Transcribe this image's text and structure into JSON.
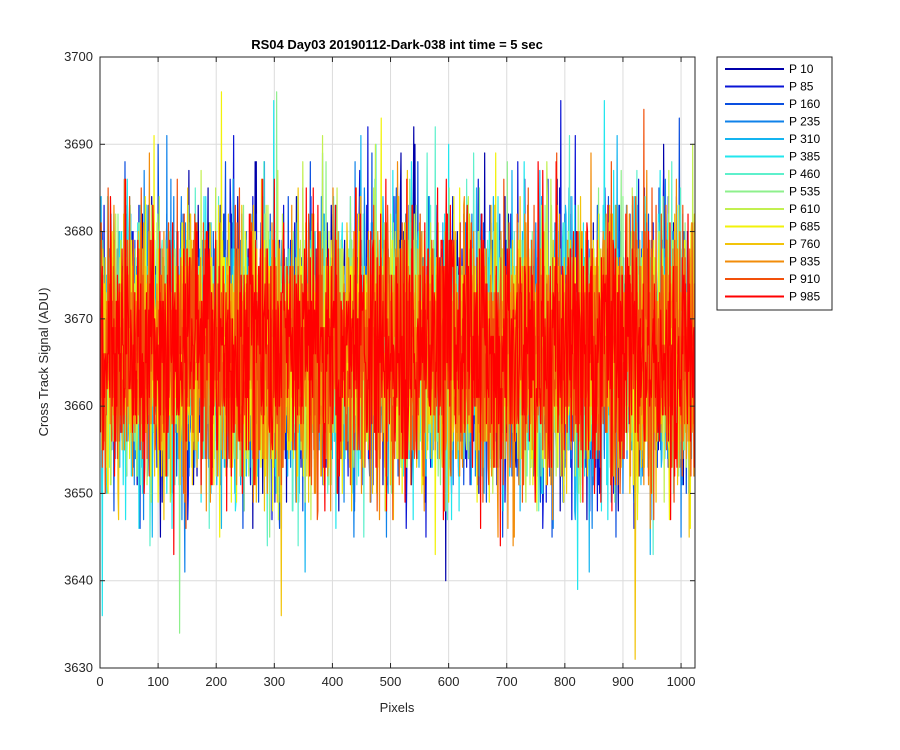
{
  "chart_data": {
    "type": "line",
    "title": "RS04 Day03 20190112-Dark-038 int time = 5 sec",
    "xlabel": "Pixels",
    "ylabel": "Cross Track Signal (ADU)",
    "xlim": [
      0,
      1024
    ],
    "ylim": [
      3630,
      3700
    ],
    "x_ticks": [
      0,
      100,
      200,
      300,
      400,
      500,
      600,
      700,
      800,
      900,
      1000
    ],
    "y_ticks": [
      3630,
      3640,
      3650,
      3660,
      3670,
      3680,
      3690,
      3700
    ],
    "grid": true,
    "legend_position": "outside-right",
    "x_start": 1,
    "x_end": 1024,
    "series": [
      {
        "name": "P 10",
        "color": "#0000aa",
        "mean": 3666.5,
        "noise_sd": 7.5,
        "seed": 11
      },
      {
        "name": "P 85",
        "color": "#0a14d6",
        "mean": 3666.5,
        "noise_sd": 7.5,
        "seed": 23
      },
      {
        "name": "P 160",
        "color": "#0a4fe0",
        "mean": 3666.5,
        "noise_sd": 7.5,
        "seed": 37
      },
      {
        "name": "P 235",
        "color": "#0f82ea",
        "mean": 3666.5,
        "noise_sd": 7.5,
        "seed": 41
      },
      {
        "name": "P 310",
        "color": "#14b4f0",
        "mean": 3666.5,
        "noise_sd": 7.5,
        "seed": 53
      },
      {
        "name": "P 385",
        "color": "#22e6ee",
        "mean": 3666.5,
        "noise_sd": 7.5,
        "seed": 67
      },
      {
        "name": "P 460",
        "color": "#5ef0cc",
        "mean": 3666.5,
        "noise_sd": 7.5,
        "seed": 71
      },
      {
        "name": "P 535",
        "color": "#8ef08c",
        "mean": 3666.5,
        "noise_sd": 7.5,
        "seed": 83
      },
      {
        "name": "P 610",
        "color": "#c2f050",
        "mean": 3666.5,
        "noise_sd": 7.5,
        "seed": 97
      },
      {
        "name": "P 685",
        "color": "#f2f20a",
        "mean": 3666.5,
        "noise_sd": 7.5,
        "seed": 101
      },
      {
        "name": "P 760",
        "color": "#f2c40a",
        "mean": 3666.5,
        "noise_sd": 7.5,
        "seed": 113
      },
      {
        "name": "P 835",
        "color": "#f28c0a",
        "mean": 3666.5,
        "noise_sd": 7.5,
        "seed": 127
      },
      {
        "name": "P 910",
        "color": "#f2500a",
        "mean": 3666.5,
        "noise_sd": 7.5,
        "seed": 131
      },
      {
        "name": "P 985",
        "color": "#ff0000",
        "mean": 3666.5,
        "noise_sd": 7.5,
        "seed": 149
      }
    ],
    "notable_extremes": [
      {
        "series": "P 760",
        "x": 921,
        "y": 3631
      },
      {
        "series": "P 535",
        "x": 137,
        "y": 3634
      },
      {
        "series": "P 385",
        "x": 4,
        "y": 3636
      },
      {
        "series": "P 685",
        "x": 209,
        "y": 3696
      },
      {
        "series": "P 535",
        "x": 304,
        "y": 3696
      },
      {
        "series": "P 85",
        "x": 793,
        "y": 3695
      },
      {
        "series": "P 385",
        "x": 868,
        "y": 3695
      },
      {
        "series": "P 160",
        "x": 997,
        "y": 3693
      },
      {
        "series": "P 685",
        "x": 484,
        "y": 3693
      }
    ]
  }
}
